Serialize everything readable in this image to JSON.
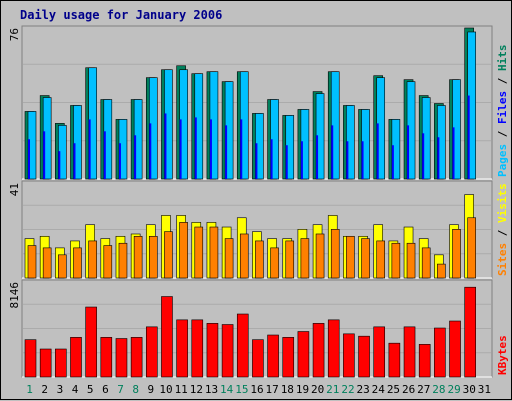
{
  "title": "Daily usage for January 2006",
  "colors": {
    "background": "#c0c0c0",
    "title": "#00008b",
    "grid": "#ababab",
    "hits": "#00805c",
    "files": "#0000ff",
    "pages": "#00c0ff",
    "visits": "#ffff00",
    "sites": "#ff8000",
    "kbytes": "#ff0000",
    "weekday_label": "#000000",
    "weekend_label": "#00805c"
  },
  "chart_data": [
    {
      "type": "bar",
      "name": "Hits / Files / Pages",
      "ymax": 76,
      "ymax_label": "76",
      "right_label": [
        {
          "text": "Pages",
          "color": "#00c0ff"
        },
        {
          "text": " / ",
          "color": "#000000"
        },
        {
          "text": "Files",
          "color": "#0000ff"
        },
        {
          "text": " / ",
          "color": "#000000"
        },
        {
          "text": "Hits",
          "color": "#00805c"
        }
      ],
      "series": [
        {
          "name": "Hits",
          "color": "#00805c",
          "values": [
            34,
            42,
            28,
            37,
            56,
            40,
            30,
            40,
            51,
            55,
            57,
            53,
            54,
            49,
            54,
            33,
            40,
            32,
            35,
            44,
            54,
            37,
            35,
            52,
            30,
            50,
            42,
            38,
            50,
            76,
            0
          ]
        },
        {
          "name": "Files",
          "color": "#0000ff",
          "values": [
            20,
            24,
            14,
            18,
            30,
            24,
            18,
            22,
            28,
            33,
            30,
            31,
            30,
            27,
            30,
            18,
            20,
            17,
            19,
            22,
            27,
            19,
            19,
            28,
            17,
            27,
            23,
            21,
            26,
            42,
            0
          ]
        },
        {
          "name": "Pages",
          "color": "#00c0ff",
          "values": [
            34,
            41,
            27,
            37,
            56,
            40,
            30,
            40,
            51,
            55,
            55,
            53,
            54,
            49,
            54,
            33,
            40,
            32,
            35,
            43,
            54,
            37,
            35,
            51,
            30,
            49,
            41,
            37,
            50,
            74,
            0
          ]
        }
      ]
    },
    {
      "type": "bar",
      "name": "Visits / Sites",
      "ymax": 41,
      "ymax_label": "41",
      "right_label": [
        {
          "text": "Sites",
          "color": "#ff8000"
        },
        {
          "text": " / ",
          "color": "#000000"
        },
        {
          "text": "Visits",
          "color": "#ffff00"
        }
      ],
      "series": [
        {
          "name": "Visits",
          "color": "#ffff00",
          "values": [
            17,
            18,
            13,
            16,
            23,
            17,
            18,
            19,
            23,
            27,
            27,
            24,
            24,
            22,
            26,
            20,
            17,
            17,
            21,
            23,
            27,
            18,
            18,
            23,
            16,
            22,
            17,
            10,
            23,
            36,
            0
          ]
        },
        {
          "name": "Sites",
          "color": "#ff8000",
          "values": [
            14,
            13,
            10,
            13,
            16,
            14,
            15,
            18,
            18,
            20,
            24,
            22,
            22,
            17,
            19,
            16,
            13,
            16,
            17,
            19,
            21,
            18,
            17,
            16,
            15,
            15,
            13,
            6,
            21,
            26,
            0
          ]
        }
      ]
    },
    {
      "type": "bar",
      "name": "KBytes",
      "ymax": 8146,
      "ymax_label": "8146",
      "right_label": [
        {
          "text": "KBytes",
          "color": "#ff0000"
        }
      ],
      "series": [
        {
          "name": "KBytes",
          "color": "#ff0000",
          "values": [
            3200,
            2400,
            2400,
            3400,
            6000,
            3400,
            3300,
            3400,
            4300,
            6900,
            4900,
            4900,
            4600,
            4500,
            5400,
            3200,
            3600,
            3400,
            3900,
            4600,
            4900,
            3700,
            3500,
            4300,
            2900,
            4300,
            2800,
            4200,
            4800,
            7700,
            0
          ]
        }
      ]
    }
  ],
  "days": [
    "1",
    "2",
    "3",
    "4",
    "5",
    "6",
    "7",
    "8",
    "9",
    "10",
    "11",
    "12",
    "13",
    "14",
    "15",
    "16",
    "17",
    "18",
    "19",
    "20",
    "21",
    "22",
    "23",
    "24",
    "25",
    "26",
    "27",
    "28",
    "29",
    "30",
    "31"
  ],
  "weekend_days": [
    "1",
    "7",
    "8",
    "14",
    "15",
    "21",
    "22",
    "28",
    "29"
  ]
}
